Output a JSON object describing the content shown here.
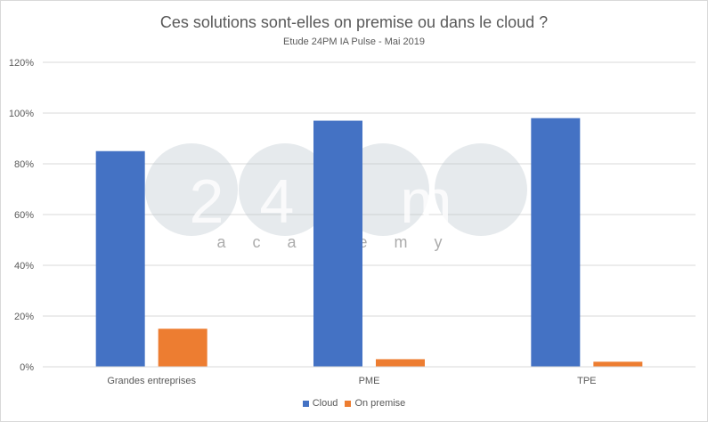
{
  "chart_data": {
    "type": "bar",
    "title": "Ces solutions sont-elles on premise ou dans le cloud ?",
    "subtitle": "Etude 24PM IA Pulse - Mai 2019",
    "categories": [
      "Grandes entreprises",
      "PME",
      "TPE"
    ],
    "series": [
      {
        "name": "Cloud",
        "color": "#4472C4",
        "values": [
          85,
          97,
          98
        ]
      },
      {
        "name": "On premise",
        "color": "#ED7D31",
        "values": [
          15,
          3,
          2
        ]
      }
    ],
    "yticks": [
      "0%",
      "20%",
      "40%",
      "60%",
      "80%",
      "100%",
      "120%"
    ],
    "ylim": [
      0,
      120
    ],
    "grid": true,
    "legend": "bottom",
    "watermark": {
      "logo_text": "24pm",
      "logo_subtext": "academy"
    }
  }
}
